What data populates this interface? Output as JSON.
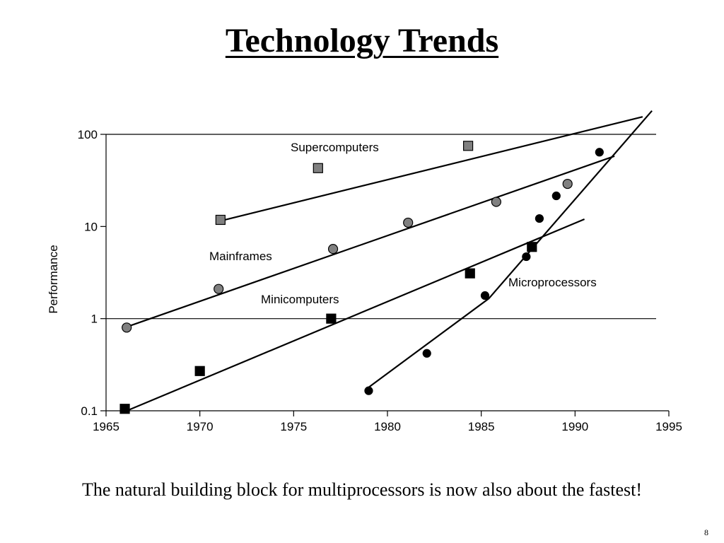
{
  "slide": {
    "title": "Technology Trends",
    "caption": "The natural building block for multiprocessors is now also about the fastest!",
    "page_number": "8"
  },
  "chart_data": {
    "type": "scatter",
    "title": "",
    "xlabel": "",
    "ylabel": "Performance",
    "xlim": [
      1965,
      1995
    ],
    "ylim": [
      0.1,
      100
    ],
    "yscale": "log",
    "x_ticks": [
      "1965",
      "1970",
      "1975",
      "1980",
      "1985",
      "1990",
      "1995"
    ],
    "y_ticks": [
      "0.1",
      "1",
      "10",
      "100"
    ],
    "gridlines_y": [
      1,
      100
    ],
    "series": [
      {
        "name": "Supercomputers",
        "marker": "square",
        "color": "#808080",
        "points": [
          [
            1971.1,
            11.8
          ],
          [
            1976.3,
            43
          ],
          [
            1984.3,
            75
          ]
        ],
        "trend": [
          [
            1971.1,
            11.5
          ],
          [
            1993.6,
            155
          ]
        ]
      },
      {
        "name": "Mainframes",
        "marker": "circle",
        "color": "#808080",
        "points": [
          [
            1966.1,
            0.8
          ],
          [
            1971.0,
            2.1
          ],
          [
            1977.1,
            5.7
          ],
          [
            1981.1,
            11
          ],
          [
            1985.8,
            18.5
          ],
          [
            1989.6,
            29
          ]
        ],
        "trend": [
          [
            1966.0,
            0.8
          ],
          [
            1992.1,
            58
          ]
        ]
      },
      {
        "name": "Minicomputers",
        "marker": "square",
        "color": "#000000",
        "points": [
          [
            1966.0,
            0.105
          ],
          [
            1970.0,
            0.27
          ],
          [
            1977.0,
            1.0
          ],
          [
            1984.4,
            3.1
          ],
          [
            1987.7,
            6.0
          ]
        ],
        "trend": [
          [
            1966.1,
            0.1
          ],
          [
            1990.5,
            12
          ]
        ]
      },
      {
        "name": "Microprocessors",
        "marker": "circle",
        "color": "#000000",
        "points": [
          [
            1979.0,
            0.165
          ],
          [
            1982.1,
            0.42
          ],
          [
            1985.2,
            1.78
          ],
          [
            1987.4,
            4.7
          ],
          [
            1988.1,
            12.2
          ],
          [
            1989.0,
            21.5
          ],
          [
            1991.3,
            64
          ]
        ],
        "trend": [
          [
            1979.0,
            0.18
          ],
          [
            1985.4,
            1.65
          ],
          [
            1994.1,
            180
          ]
        ]
      }
    ]
  }
}
